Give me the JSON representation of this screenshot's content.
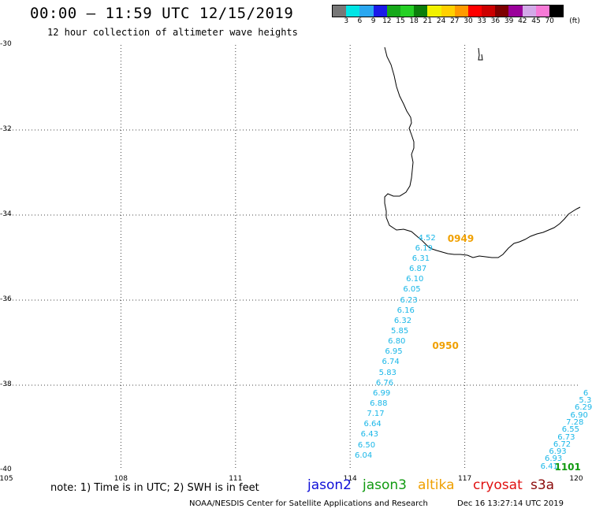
{
  "header": {
    "title": "00:00 – 11:59 UTC 12/15/2019",
    "subtitle": "12 hour collection of altimeter wave heights"
  },
  "colorbar": {
    "colors": [
      "#777777",
      "#00e5e5",
      "#2aa7f0",
      "#1a1ae8",
      "#16a81a",
      "#25d025",
      "#0b7e0b",
      "#f2f200",
      "#ffd000",
      "#ff9a00",
      "#ff0000",
      "#cc0000",
      "#7d0000",
      "#9a009a",
      "#d3a9e8",
      "#f77ad7",
      "#000000"
    ],
    "ticks": [
      "3",
      "6",
      "9",
      "12",
      "15",
      "18",
      "21",
      "24",
      "27",
      "30",
      "33",
      "36",
      "39",
      "42",
      "45",
      "70"
    ],
    "unit": "(ft)"
  },
  "axes": {
    "lat_labels": [
      "-30",
      "-32",
      "-34",
      "-36",
      "-38",
      "-40"
    ],
    "lon_labels": [
      "105",
      "108",
      "111",
      "114",
      "117",
      "120"
    ]
  },
  "map": {
    "extent": {
      "lon_min": 105,
      "lon_max": 120,
      "lat_min": -40,
      "lat_max": -30
    },
    "grid": "dotted",
    "coast_color": "#000000",
    "swh_color": "#1ab7e8",
    "pass_times": [
      {
        "label": "0949",
        "lon": 116.55,
        "lat": -34.57,
        "color": "#f0a000"
      },
      {
        "label": "0950",
        "lon": 116.15,
        "lat": -37.1,
        "color": "#f0a000"
      },
      {
        "label": "1101",
        "lon": 119.35,
        "lat": -39.94,
        "color": "#119a11"
      }
    ],
    "track_a": {
      "values": [
        "4.52",
        "6.19",
        "6.31",
        "6.87",
        "6.10",
        "6.05",
        "6.23",
        "6.16",
        "6.32",
        "5.85",
        "6.80",
        "6.95",
        "6.74",
        "5.83",
        "6.76",
        "6.99",
        "6.88",
        "7.17",
        "6.64",
        "6.43",
        "6.50",
        "6.04"
      ],
      "start": {
        "lon": 115.78,
        "lat": -34.57
      },
      "end": {
        "lon": 114.12,
        "lat": -39.68
      }
    },
    "track_b": {
      "values": [
        "6",
        "5.3",
        "6.29",
        "6.90",
        "7.28",
        "6.55",
        "6.73",
        "6.72",
        "6.93",
        "6.93",
        "6.41"
      ],
      "start": {
        "lon": 120.1,
        "lat": -38.22
      },
      "end": {
        "lon": 118.98,
        "lat": -39.94
      }
    }
  },
  "legend": {
    "note": "note: 1) Time is in UTC; 2) SWH is in feet",
    "satellites": [
      {
        "name": "jason2",
        "color": "#1010d8"
      },
      {
        "name": "jason3",
        "color": "#119a11"
      },
      {
        "name": "altika",
        "color": "#f0a000"
      },
      {
        "name": "cryosat",
        "color": "#e01010"
      },
      {
        "name": "s3a",
        "color": "#8b0a0a"
      }
    ]
  },
  "footer": {
    "credit": "NOAA/NESDIS Center for Satellite Applications and Research",
    "timestamp": "Dec 16 13:27:14 UTC 2019"
  }
}
